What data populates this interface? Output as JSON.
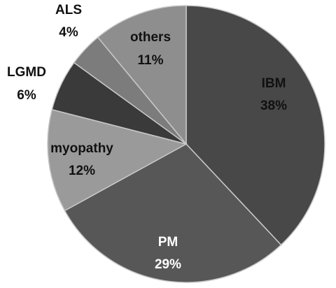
{
  "chart_data": {
    "type": "pie",
    "slices": [
      {
        "label": "IBM",
        "value": 38,
        "value_label": "38%",
        "color": "#484848",
        "text_color": "#111111"
      },
      {
        "label": "PM",
        "value": 29,
        "value_label": "29%",
        "color": "#575757",
        "text_color": "#ffffff"
      },
      {
        "label": "myopathy",
        "value": 12,
        "value_label": "12%",
        "color": "#9a9a9a",
        "text_color": "#111111"
      },
      {
        "label": "LGMD",
        "value": 6,
        "value_label": "6%",
        "color": "#3a3a3a",
        "text_color": "#111111"
      },
      {
        "label": "ALS",
        "value": 4,
        "value_label": "4%",
        "color": "#7c7c7c",
        "text_color": "#111111"
      },
      {
        "label": "others",
        "value": 11,
        "value_label": "11%",
        "color": "#8e8e8e",
        "text_color": "#111111"
      }
    ]
  }
}
